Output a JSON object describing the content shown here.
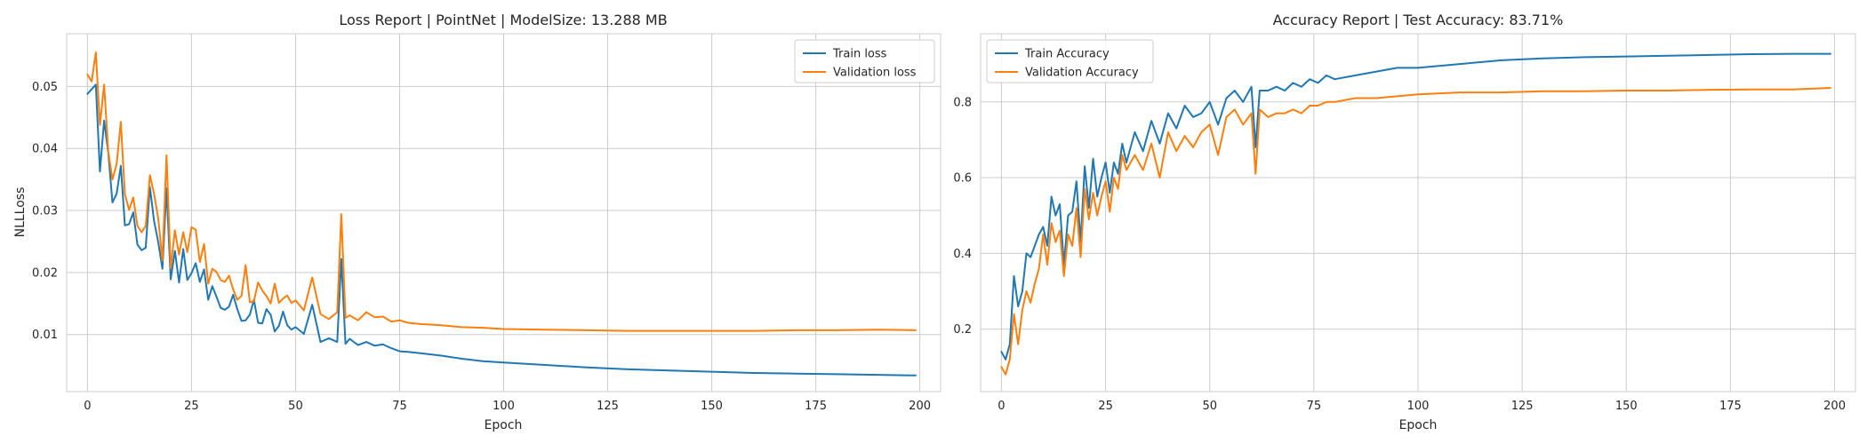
{
  "chart_data": [
    {
      "type": "line",
      "title": "Loss Report | PointNet | ModelSize: 13.288 MB",
      "xlabel": "Epoch",
      "ylabel": "NLLLoss",
      "xlim": [
        -5,
        205
      ],
      "ylim": [
        0.0008,
        0.0585
      ],
      "xticks": [
        0,
        25,
        50,
        75,
        100,
        125,
        150,
        175,
        200
      ],
      "yticks": [
        0.01,
        0.02,
        0.03,
        0.04,
        0.05
      ],
      "ytick_labels": [
        "0.01",
        "0.02",
        "0.03",
        "0.04",
        "0.05"
      ],
      "grid": true,
      "legend_position": "top-right",
      "colors": {
        "train": "#1f77b4",
        "validation": "#ff7f0e"
      },
      "series": [
        {
          "name": "Train loss",
          "color": "#1f77b4",
          "x": [
            0,
            2,
            3,
            4,
            5,
            6,
            7,
            8,
            9,
            10,
            11,
            12,
            13,
            14,
            15,
            16,
            17,
            18,
            19,
            20,
            21,
            22,
            23,
            24,
            25,
            26,
            27,
            28,
            29,
            30,
            31,
            32,
            33,
            34,
            35,
            36,
            37,
            38,
            39,
            40,
            41,
            42,
            43,
            44,
            45,
            46,
            47,
            48,
            49,
            50,
            52,
            54,
            56,
            58,
            60,
            61,
            62,
            63,
            65,
            67,
            69,
            71,
            73,
            75,
            77,
            80,
            85,
            90,
            95,
            100,
            110,
            120,
            130,
            140,
            150,
            160,
            170,
            180,
            190,
            199
          ],
          "y": [
            0.0488,
            0.0503,
            0.0363,
            0.0445,
            0.0393,
            0.0313,
            0.0327,
            0.0372,
            0.0276,
            0.0278,
            0.0297,
            0.0245,
            0.0236,
            0.024,
            0.0338,
            0.0283,
            0.0249,
            0.0206,
            0.0336,
            0.0189,
            0.0235,
            0.0184,
            0.0238,
            0.0188,
            0.0199,
            0.0215,
            0.0185,
            0.0205,
            0.0156,
            0.0178,
            0.0161,
            0.0143,
            0.014,
            0.0145,
            0.0164,
            0.0141,
            0.0122,
            0.0123,
            0.0132,
            0.0156,
            0.0119,
            0.0118,
            0.0141,
            0.0132,
            0.0105,
            0.0114,
            0.0137,
            0.0115,
            0.0108,
            0.0112,
            0.0101,
            0.0148,
            0.0088,
            0.0094,
            0.0088,
            0.0222,
            0.0085,
            0.0093,
            0.0083,
            0.0088,
            0.0082,
            0.0084,
            0.0078,
            0.0073,
            0.0072,
            0.007,
            0.0066,
            0.0061,
            0.0057,
            0.0055,
            0.0051,
            0.0047,
            0.0044,
            0.0042,
            0.004,
            0.0038,
            0.0037,
            0.0036,
            0.0035,
            0.0034
          ]
        },
        {
          "name": "Validation loss",
          "color": "#ff7f0e",
          "x": [
            0,
            1,
            2,
            3,
            4,
            5,
            6,
            7,
            8,
            9,
            10,
            11,
            12,
            13,
            14,
            15,
            16,
            17,
            18,
            19,
            20,
            21,
            22,
            23,
            24,
            25,
            26,
            27,
            28,
            29,
            30,
            31,
            32,
            33,
            34,
            35,
            36,
            37,
            38,
            39,
            40,
            41,
            42,
            43,
            44,
            45,
            46,
            47,
            48,
            49,
            50,
            52,
            54,
            56,
            58,
            60,
            61,
            62,
            63,
            65,
            67,
            69,
            71,
            73,
            75,
            77,
            80,
            85,
            90,
            95,
            100,
            110,
            120,
            130,
            140,
            150,
            160,
            170,
            180,
            190,
            199
          ],
          "y": [
            0.0519,
            0.0508,
            0.0555,
            0.0438,
            0.0503,
            0.0395,
            0.035,
            0.0375,
            0.0443,
            0.0326,
            0.0301,
            0.0321,
            0.0275,
            0.0265,
            0.0275,
            0.0357,
            0.0327,
            0.0287,
            0.0219,
            0.0389,
            0.0207,
            0.0268,
            0.0229,
            0.0265,
            0.0233,
            0.0273,
            0.0269,
            0.0217,
            0.0246,
            0.0182,
            0.0206,
            0.0201,
            0.0188,
            0.0185,
            0.0195,
            0.0173,
            0.0156,
            0.0162,
            0.0212,
            0.0152,
            0.0154,
            0.0184,
            0.0171,
            0.0162,
            0.015,
            0.0182,
            0.0151,
            0.0158,
            0.0163,
            0.0151,
            0.0155,
            0.0139,
            0.0192,
            0.0133,
            0.0125,
            0.0136,
            0.0294,
            0.0127,
            0.0131,
            0.0123,
            0.0136,
            0.0128,
            0.0129,
            0.0121,
            0.0123,
            0.0119,
            0.0117,
            0.0115,
            0.0112,
            0.0111,
            0.0109,
            0.0108,
            0.0107,
            0.0106,
            0.0106,
            0.0106,
            0.0106,
            0.0107,
            0.0107,
            0.0108,
            0.0107
          ]
        }
      ]
    },
    {
      "type": "line",
      "title": "Accuracy Report | Test Accuracy: 83.71%",
      "xlabel": "Epoch",
      "ylabel": "",
      "xlim": [
        -5,
        205
      ],
      "ylim": [
        0.035,
        0.98
      ],
      "xticks": [
        0,
        25,
        50,
        75,
        100,
        125,
        150,
        175,
        200
      ],
      "yticks": [
        0.2,
        0.4,
        0.6,
        0.8
      ],
      "ytick_labels": [
        "0.2",
        "0.4",
        "0.6",
        "0.8"
      ],
      "grid": true,
      "legend_position": "top-left",
      "colors": {
        "train": "#1f77b4",
        "validation": "#ff7f0e"
      },
      "series": [
        {
          "name": "Train Accuracy",
          "color": "#1f77b4",
          "x": [
            0,
            1,
            2,
            3,
            4,
            5,
            6,
            7,
            8,
            9,
            10,
            11,
            12,
            13,
            14,
            15,
            16,
            17,
            18,
            19,
            20,
            21,
            22,
            23,
            24,
            25,
            26,
            27,
            28,
            29,
            30,
            32,
            34,
            36,
            38,
            40,
            42,
            44,
            46,
            48,
            50,
            52,
            54,
            56,
            58,
            60,
            61,
            62,
            64,
            66,
            68,
            70,
            72,
            74,
            76,
            78,
            80,
            85,
            90,
            95,
            100,
            110,
            120,
            130,
            140,
            150,
            160,
            170,
            180,
            190,
            199
          ],
          "y": [
            0.14,
            0.12,
            0.16,
            0.34,
            0.26,
            0.3,
            0.4,
            0.39,
            0.42,
            0.45,
            0.47,
            0.42,
            0.55,
            0.5,
            0.53,
            0.37,
            0.5,
            0.51,
            0.59,
            0.43,
            0.63,
            0.52,
            0.65,
            0.55,
            0.6,
            0.64,
            0.56,
            0.64,
            0.61,
            0.69,
            0.64,
            0.72,
            0.67,
            0.75,
            0.69,
            0.77,
            0.73,
            0.79,
            0.76,
            0.77,
            0.8,
            0.74,
            0.81,
            0.83,
            0.8,
            0.84,
            0.68,
            0.83,
            0.83,
            0.84,
            0.83,
            0.85,
            0.84,
            0.86,
            0.85,
            0.87,
            0.86,
            0.87,
            0.88,
            0.89,
            0.89,
            0.9,
            0.91,
            0.915,
            0.918,
            0.92,
            0.922,
            0.924,
            0.926,
            0.927,
            0.927
          ]
        },
        {
          "name": "Validation Accuracy",
          "color": "#ff7f0e",
          "x": [
            0,
            1,
            2,
            3,
            4,
            5,
            6,
            7,
            8,
            9,
            10,
            11,
            12,
            13,
            14,
            15,
            16,
            17,
            18,
            19,
            20,
            21,
            22,
            23,
            24,
            25,
            26,
            27,
            28,
            29,
            30,
            32,
            34,
            36,
            38,
            40,
            42,
            44,
            46,
            48,
            50,
            52,
            54,
            56,
            58,
            60,
            61,
            62,
            64,
            66,
            68,
            70,
            72,
            74,
            76,
            78,
            80,
            85,
            90,
            95,
            100,
            110,
            120,
            130,
            140,
            150,
            160,
            170,
            180,
            190,
            199
          ],
          "y": [
            0.1,
            0.08,
            0.12,
            0.24,
            0.16,
            0.25,
            0.3,
            0.27,
            0.32,
            0.36,
            0.45,
            0.37,
            0.48,
            0.43,
            0.46,
            0.34,
            0.45,
            0.42,
            0.52,
            0.39,
            0.57,
            0.49,
            0.56,
            0.5,
            0.55,
            0.59,
            0.51,
            0.6,
            0.57,
            0.66,
            0.62,
            0.66,
            0.62,
            0.69,
            0.6,
            0.72,
            0.67,
            0.71,
            0.68,
            0.72,
            0.74,
            0.66,
            0.76,
            0.78,
            0.74,
            0.77,
            0.61,
            0.78,
            0.76,
            0.77,
            0.77,
            0.78,
            0.77,
            0.79,
            0.79,
            0.8,
            0.8,
            0.81,
            0.81,
            0.815,
            0.82,
            0.825,
            0.825,
            0.828,
            0.828,
            0.83,
            0.83,
            0.832,
            0.833,
            0.833,
            0.837
          ]
        }
      ]
    }
  ]
}
